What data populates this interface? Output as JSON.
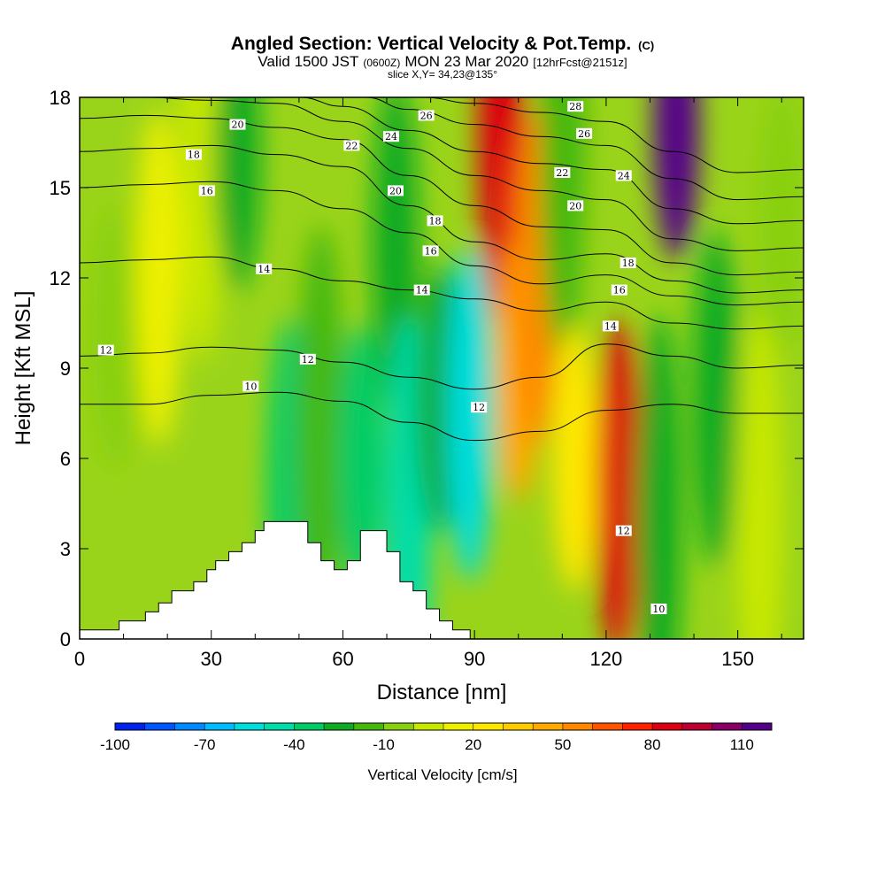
{
  "title": {
    "main": "Angled Section: Vertical Velocity & Pot.Temp.",
    "main_suffix": "(C)",
    "valid_prefix": "Valid 1500 JST",
    "valid_z": "(0600Z)",
    "valid_date": "MON 23 Mar 2020",
    "valid_fcst": "[12hrFcst@2151z]",
    "slice": "slice X,Y= 34,23@135°"
  },
  "chart_data": {
    "type": "heatmap",
    "xlabel": "Distance [nm]",
    "ylabel": "Height [Kft MSL]",
    "xlim": [
      0,
      165
    ],
    "ylim": [
      0,
      18
    ],
    "x_ticks": [
      0,
      30,
      60,
      90,
      120,
      150
    ],
    "y_ticks": [
      0,
      3,
      6,
      9,
      12,
      15,
      18
    ],
    "colorbar": {
      "label": "Vertical Velocity [cm/s]",
      "tick_labels": [
        "-100",
        "-70",
        "-40",
        "-10",
        "20",
        "50",
        "80",
        "110"
      ],
      "tick_values": [
        -100,
        -70,
        -40,
        -10,
        20,
        50,
        80,
        110
      ],
      "range": [
        -100,
        120
      ],
      "step": 10,
      "colors": [
        "#0022ee",
        "#0055ff",
        "#0088ff",
        "#00bbff",
        "#00dddd",
        "#00ddaa",
        "#00cc66",
        "#11aa22",
        "#44b80c",
        "#88d011",
        "#c8e800",
        "#eef000",
        "#ffe800",
        "#ffcc00",
        "#ffaa00",
        "#ff8800",
        "#ff5500",
        "#ff2200",
        "#dd0011",
        "#bb0033",
        "#880066",
        "#550088"
      ]
    },
    "vertical_velocity_bands": [
      {
        "x": 8,
        "y": 10,
        "w": -5
      },
      {
        "x": 18,
        "y": 12,
        "w": 12
      },
      {
        "x": 28,
        "y": 16,
        "w": 8
      },
      {
        "x": 36,
        "y": 16,
        "w": -25
      },
      {
        "x": 48,
        "y": 5,
        "w": -40
      },
      {
        "x": 55,
        "y": 7,
        "w": -20
      },
      {
        "x": 64,
        "y": 6,
        "w": -35
      },
      {
        "x": 72,
        "y": 13,
        "w": -30
      },
      {
        "x": 75,
        "y": 4,
        "w": -45
      },
      {
        "x": 82,
        "y": 8,
        "w": -25
      },
      {
        "x": 89,
        "y": 7.5,
        "w": -55
      },
      {
        "x": 96,
        "y": 17,
        "w": 80
      },
      {
        "x": 100,
        "y": 9,
        "w": 45
      },
      {
        "x": 104,
        "y": 12,
        "w": 50
      },
      {
        "x": 110,
        "y": 16,
        "w": -20
      },
      {
        "x": 113,
        "y": 6,
        "w": 25
      },
      {
        "x": 123,
        "y": 5,
        "w": 80
      },
      {
        "x": 132,
        "y": 4,
        "w": -25
      },
      {
        "x": 136,
        "y": 17,
        "w": 110
      },
      {
        "x": 145,
        "y": 8,
        "w": -25
      },
      {
        "x": 155,
        "y": 4,
        "w": 0
      },
      {
        "x": 160,
        "y": 14,
        "w": -5
      }
    ],
    "terrain": [
      {
        "x": 0,
        "h": 0.3
      },
      {
        "x": 9,
        "h": 0.3
      },
      {
        "x": 9,
        "h": 0.6
      },
      {
        "x": 15,
        "h": 0.6
      },
      {
        "x": 15,
        "h": 0.9
      },
      {
        "x": 18,
        "h": 0.9
      },
      {
        "x": 18,
        "h": 1.2
      },
      {
        "x": 21,
        "h": 1.2
      },
      {
        "x": 21,
        "h": 1.6
      },
      {
        "x": 26,
        "h": 1.6
      },
      {
        "x": 26,
        "h": 1.9
      },
      {
        "x": 29,
        "h": 1.9
      },
      {
        "x": 29,
        "h": 2.3
      },
      {
        "x": 31,
        "h": 2.3
      },
      {
        "x": 31,
        "h": 2.6
      },
      {
        "x": 34,
        "h": 2.6
      },
      {
        "x": 34,
        "h": 2.9
      },
      {
        "x": 37,
        "h": 2.9
      },
      {
        "x": 37,
        "h": 3.2
      },
      {
        "x": 40,
        "h": 3.2
      },
      {
        "x": 40,
        "h": 3.6
      },
      {
        "x": 42,
        "h": 3.6
      },
      {
        "x": 42,
        "h": 3.9
      },
      {
        "x": 52,
        "h": 3.9
      },
      {
        "x": 52,
        "h": 3.2
      },
      {
        "x": 55,
        "h": 3.2
      },
      {
        "x": 55,
        "h": 2.6
      },
      {
        "x": 58,
        "h": 2.6
      },
      {
        "x": 58,
        "h": 2.3
      },
      {
        "x": 61,
        "h": 2.3
      },
      {
        "x": 61,
        "h": 2.6
      },
      {
        "x": 64,
        "h": 2.6
      },
      {
        "x": 64,
        "h": 3.6
      },
      {
        "x": 70,
        "h": 3.6
      },
      {
        "x": 70,
        "h": 2.9
      },
      {
        "x": 73,
        "h": 2.9
      },
      {
        "x": 73,
        "h": 1.9
      },
      {
        "x": 76,
        "h": 1.9
      },
      {
        "x": 76,
        "h": 1.6
      },
      {
        "x": 79,
        "h": 1.6
      },
      {
        "x": 79,
        "h": 1.0
      },
      {
        "x": 82,
        "h": 1.0
      },
      {
        "x": 82,
        "h": 0.6
      },
      {
        "x": 85,
        "h": 0.6
      },
      {
        "x": 85,
        "h": 0.3
      },
      {
        "x": 89,
        "h": 0.3
      },
      {
        "x": 89,
        "h": 0
      },
      {
        "x": 165,
        "h": 0
      }
    ],
    "theta_contours": [
      {
        "label": "10",
        "x": [
          0,
          15,
          30,
          45,
          60,
          75,
          90,
          105,
          120,
          135,
          150,
          165
        ],
        "y": [
          7.8,
          7.8,
          8.1,
          8.2,
          7.9,
          7.2,
          6.6,
          6.9,
          7.6,
          7.8,
          7.5,
          7.5
        ]
      },
      {
        "label": "12",
        "x": [
          0,
          15,
          30,
          45,
          60,
          75,
          90,
          105,
          120,
          135,
          150,
          165
        ],
        "y": [
          9.4,
          9.5,
          9.7,
          9.6,
          9.2,
          8.7,
          8.3,
          8.7,
          9.8,
          9.4,
          9.0,
          9.1
        ]
      },
      {
        "label": "14",
        "x": [
          0,
          15,
          30,
          45,
          60,
          75,
          90,
          105,
          120,
          135,
          150,
          165
        ],
        "y": [
          12.5,
          12.6,
          12.7,
          12.3,
          11.9,
          11.6,
          11.3,
          10.9,
          11.2,
          10.5,
          10.3,
          10.4
        ]
      },
      {
        "label": "16",
        "x": [
          0,
          15,
          30,
          45,
          60,
          75,
          90,
          105,
          120,
          135,
          150,
          165
        ],
        "y": [
          15.0,
          15.1,
          15.2,
          14.9,
          14.3,
          13.5,
          12.4,
          11.8,
          12.1,
          11.4,
          11.1,
          11.2
        ]
      },
      {
        "label": "18",
        "x": [
          0,
          15,
          30,
          45,
          60,
          75,
          90,
          105,
          120,
          135,
          150,
          165
        ],
        "y": [
          16.2,
          16.3,
          16.4,
          16.1,
          15.7,
          14.4,
          13.2,
          12.6,
          12.8,
          11.9,
          11.5,
          11.6
        ]
      },
      {
        "label": "20",
        "x": [
          0,
          15,
          30,
          45,
          60,
          75,
          90,
          105,
          120,
          135,
          150,
          165
        ],
        "y": [
          17.3,
          17.4,
          17.3,
          17.0,
          16.6,
          15.4,
          14.4,
          13.7,
          13.6,
          12.5,
          12.1,
          12.2
        ]
      },
      {
        "label": "22",
        "x": [
          0,
          15,
          30,
          45,
          60,
          75,
          90,
          105,
          120,
          135,
          150,
          165
        ],
        "y": [
          18.0,
          18.0,
          17.9,
          17.8,
          17.2,
          16.3,
          15.4,
          14.9,
          14.6,
          13.3,
          12.9,
          13.0
        ]
      },
      {
        "label": "24",
        "x": [
          50,
          60,
          75,
          90,
          105,
          120,
          135,
          150,
          165
        ],
        "y": [
          18.0,
          17.7,
          16.9,
          16.2,
          15.8,
          15.6,
          14.3,
          13.8,
          13.9
        ]
      },
      {
        "label": "26",
        "x": [
          65,
          75,
          90,
          105,
          120,
          135,
          150,
          165
        ],
        "y": [
          18.0,
          17.6,
          17.1,
          16.7,
          16.4,
          15.3,
          14.6,
          14.7
        ]
      },
      {
        "label": "28",
        "x": [
          78,
          90,
          105,
          120,
          135,
          150,
          165
        ],
        "y": [
          18.0,
          17.8,
          17.5,
          17.2,
          16.2,
          15.5,
          15.6
        ]
      }
    ],
    "contour_labels": [
      {
        "text": "20",
        "x": 36,
        "y": 17.1
      },
      {
        "text": "18",
        "x": 26,
        "y": 16.1
      },
      {
        "text": "16",
        "x": 29,
        "y": 14.9
      },
      {
        "text": "14",
        "x": 42,
        "y": 12.3
      },
      {
        "text": "12",
        "x": 6,
        "y": 9.6
      },
      {
        "text": "10",
        "x": 39,
        "y": 8.4
      },
      {
        "text": "12",
        "x": 52,
        "y": 9.3
      },
      {
        "text": "22",
        "x": 62,
        "y": 16.4
      },
      {
        "text": "24",
        "x": 71,
        "y": 16.7
      },
      {
        "text": "26",
        "x": 79,
        "y": 17.4
      },
      {
        "text": "20",
        "x": 72,
        "y": 14.9
      },
      {
        "text": "18",
        "x": 81,
        "y": 13.9
      },
      {
        "text": "16",
        "x": 80,
        "y": 12.9
      },
      {
        "text": "14",
        "x": 78,
        "y": 11.6
      },
      {
        "text": "12",
        "x": 91,
        "y": 7.7
      },
      {
        "text": "28",
        "x": 113,
        "y": 17.7
      },
      {
        "text": "26",
        "x": 115,
        "y": 16.8
      },
      {
        "text": "22",
        "x": 110,
        "y": 15.5
      },
      {
        "text": "24",
        "x": 124,
        "y": 15.4
      },
      {
        "text": "20",
        "x": 113,
        "y": 14.4
      },
      {
        "text": "18",
        "x": 125,
        "y": 12.5
      },
      {
        "text": "16",
        "x": 123,
        "y": 11.6
      },
      {
        "text": "14",
        "x": 121,
        "y": 10.4
      },
      {
        "text": "12",
        "x": 124,
        "y": 3.6
      },
      {
        "text": "10",
        "x": 132,
        "y": 1.0
      }
    ]
  }
}
